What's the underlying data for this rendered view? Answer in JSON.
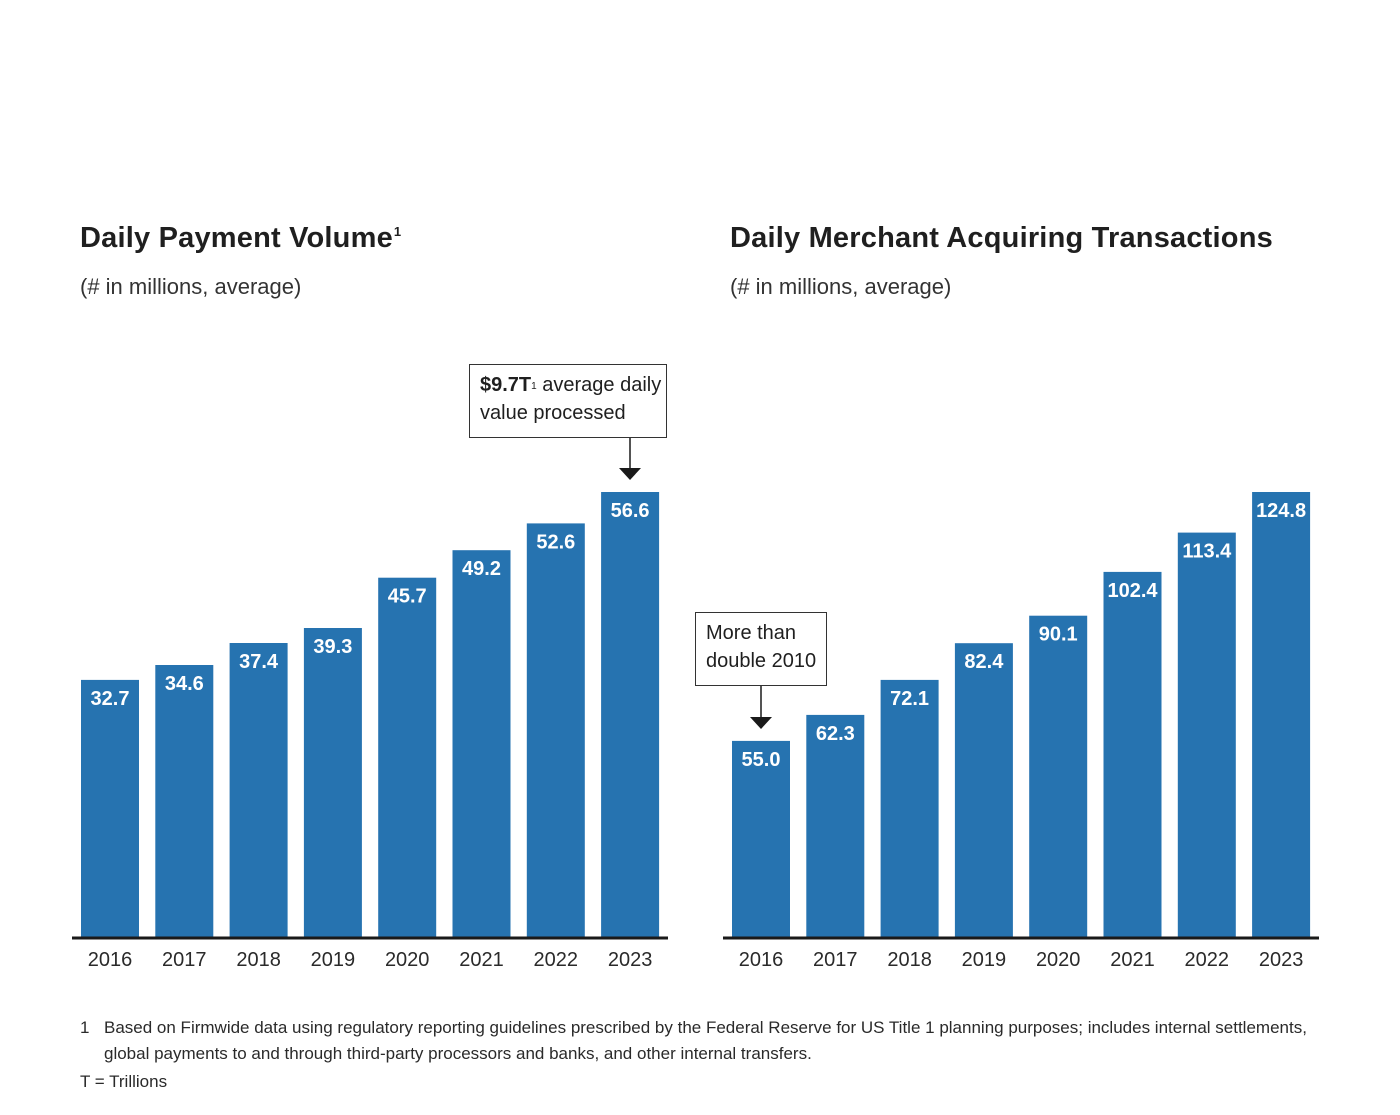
{
  "charts": [
    {
      "title": "Daily Payment Volume",
      "title_sup": "1",
      "subtitle": "(# in millions, average)",
      "callout": {
        "bold": "$9.7T",
        "sup": "1",
        "line1_rest": " average daily",
        "line2": "value processed"
      }
    },
    {
      "title": "Daily Merchant Acquiring Transactions",
      "title_sup": "",
      "subtitle": "(# in millions, average)",
      "callout": {
        "line1": "More than",
        "line2": "double 2010"
      }
    }
  ],
  "chart_data": [
    {
      "type": "bar",
      "title": "Daily Payment Volume",
      "ylabel": "",
      "xlabel": "",
      "categories": [
        "2016",
        "2017",
        "2018",
        "2019",
        "2020",
        "2021",
        "2022",
        "2023"
      ],
      "values": [
        32.7,
        34.6,
        37.4,
        39.3,
        45.7,
        49.2,
        52.6,
        56.6
      ],
      "value_labels": [
        "32.7",
        "34.6",
        "37.4",
        "39.3",
        "45.7",
        "49.2",
        "52.6",
        "56.6"
      ],
      "ylim": [
        0,
        56.6
      ],
      "grid": false,
      "bar_color": "#2673b0"
    },
    {
      "type": "bar",
      "title": "Daily Merchant Acquiring Transactions",
      "ylabel": "",
      "xlabel": "",
      "categories": [
        "2016",
        "2017",
        "2018",
        "2019",
        "2020",
        "2021",
        "2022",
        "2023"
      ],
      "values": [
        55.0,
        62.3,
        72.1,
        82.4,
        90.1,
        102.4,
        113.4,
        124.8
      ],
      "value_labels": [
        "55.0",
        "62.3",
        "72.1",
        "82.4",
        "90.1",
        "102.4",
        "113.4",
        "124.8"
      ],
      "ylim": [
        0,
        124.8
      ],
      "grid": false,
      "bar_color": "#2673b0"
    }
  ],
  "footnotes": {
    "note1_number": "1",
    "note1_text": "Based on Firmwide data using regulatory reporting guidelines prescribed by the Federal Reserve for US Title 1 planning purposes; includes internal settlements, global payments to and through third-party processors and banks, and other internal transfers.",
    "note2_text": "T = Trillions"
  },
  "colors": {
    "bar": "#2673b0",
    "axis": "#1a1a1a",
    "label_on_bar": "#ffffff"
  }
}
